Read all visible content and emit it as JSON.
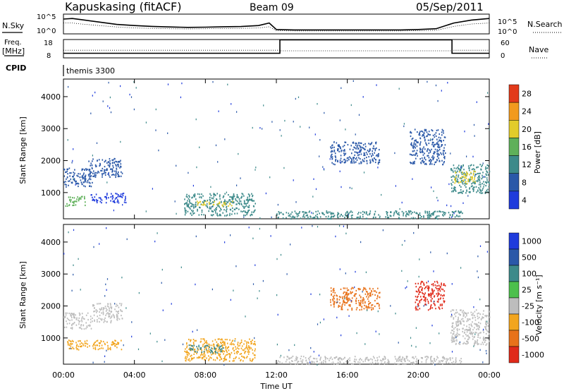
{
  "header": {
    "station": "Kapuskasing (fitACF)",
    "beam": "Beam 09",
    "date": "05/Sep/2011"
  },
  "strips": {
    "nsky_label": "N.Sky",
    "nsearch_label": "N.Search",
    "freq_label_1": "Freq.",
    "freq_label_2": "[MHz]",
    "nave_label": "Nave",
    "cpid_label": "CPID",
    "cpid_value": "themis 3300",
    "left_ticks_top": [
      "10^5",
      "10^0"
    ],
    "right_ticks_top": [
      "10^5",
      "10^0"
    ],
    "left_ticks_freq": [
      "18",
      "8"
    ],
    "right_ticks_nave": [
      "60",
      "0"
    ]
  },
  "axes": {
    "ylabel": "Slant Range [km]",
    "xlabel": "Time UT",
    "yticks": [
      "4000",
      "3000",
      "2000",
      "1000"
    ],
    "xticks": [
      "00:00",
      "04:00",
      "08:00",
      "12:00",
      "16:00",
      "20:00",
      "00:00"
    ]
  },
  "colorbars": {
    "power": {
      "label": "Power [dB]",
      "ticks": [
        "28",
        "24",
        "20",
        "16",
        "12",
        "8",
        "4"
      ]
    },
    "velocity": {
      "label": "Velocity [m s⁻¹]",
      "ticks": [
        "1000",
        "500",
        "100",
        "25",
        "-25",
        "-100",
        "-500",
        "-1000"
      ]
    }
  },
  "chart_data": [
    {
      "type": "heatmap",
      "title": "",
      "xlabel": "",
      "ylabel": "Slant Range [km]",
      "x_unit": "hours UT",
      "xlim": [
        0,
        24
      ],
      "ylim": [
        180,
        4550
      ],
      "legend": "Power [dB]",
      "color_levels": [
        4,
        8,
        12,
        16,
        20,
        24,
        28
      ],
      "colors": [
        "#1f3bdc",
        "#2a58a8",
        "#3d8a8a",
        "#5fb05a",
        "#e2cc2a",
        "#f29a1e",
        "#e23a1a"
      ],
      "regions": [
        {
          "t": [
            0.0,
            1.6
          ],
          "r": [
            1200,
            1800
          ],
          "level": 8
        },
        {
          "t": [
            0.1,
            1.2
          ],
          "r": [
            600,
            900
          ],
          "level": 16
        },
        {
          "t": [
            1.4,
            3.3
          ],
          "r": [
            1500,
            2100
          ],
          "level": 8
        },
        {
          "t": [
            1.5,
            3.5
          ],
          "r": [
            700,
            1000
          ],
          "level": 4
        },
        {
          "t": [
            6.8,
            10.8
          ],
          "r": [
            300,
            1000
          ],
          "level": 12
        },
        {
          "t": [
            7.5,
            9.5
          ],
          "r": [
            600,
            750
          ],
          "level": 20
        },
        {
          "t": [
            12.0,
            22.5
          ],
          "r": [
            200,
            450
          ],
          "level": 12
        },
        {
          "t": [
            15.0,
            17.8
          ],
          "r": [
            1900,
            2600
          ],
          "level": 8
        },
        {
          "t": [
            19.5,
            21.5
          ],
          "r": [
            1900,
            3000
          ],
          "level": 8
        },
        {
          "t": [
            21.8,
            24.0
          ],
          "r": [
            1000,
            1900
          ],
          "level": 12
        },
        {
          "t": [
            22.0,
            23.2
          ],
          "r": [
            1300,
            1700
          ],
          "level": 20
        }
      ]
    },
    {
      "type": "heatmap",
      "title": "",
      "xlabel": "Time UT",
      "ylabel": "Slant Range [km]",
      "x_unit": "hours UT",
      "xlim": [
        0,
        24
      ],
      "ylim": [
        180,
        4550
      ],
      "legend": "Velocity [m s⁻¹]",
      "color_levels": [
        1000,
        500,
        100,
        25,
        -25,
        -100,
        -500,
        -1000
      ],
      "colors": [
        "#1f3bdc",
        "#2a58a8",
        "#3d8a8a",
        "#4cc04c",
        "#bdbdbd",
        "#f2a51e",
        "#e8721a",
        "#e02a1a"
      ],
      "regions": [
        {
          "t": [
            0.0,
            1.6
          ],
          "r": [
            1300,
            1800
          ],
          "level": -25
        },
        {
          "t": [
            0.2,
            3.3
          ],
          "r": [
            650,
            950
          ],
          "level": -100
        },
        {
          "t": [
            1.6,
            3.3
          ],
          "r": [
            1500,
            2100
          ],
          "level": -25
        },
        {
          "t": [
            6.8,
            10.8
          ],
          "r": [
            300,
            1000
          ],
          "level": -100
        },
        {
          "t": [
            7.0,
            9.0
          ],
          "r": [
            550,
            800
          ],
          "level": 100
        },
        {
          "t": [
            12.0,
            22.5
          ],
          "r": [
            200,
            450
          ],
          "level": -25
        },
        {
          "t": [
            15.0,
            17.8
          ],
          "r": [
            1900,
            2600
          ],
          "level": -500
        },
        {
          "t": [
            19.8,
            21.5
          ],
          "r": [
            1900,
            2800
          ],
          "level": -1000
        },
        {
          "t": [
            21.8,
            24.0
          ],
          "r": [
            800,
            1900
          ],
          "level": -25
        }
      ]
    },
    {
      "type": "line",
      "title": "",
      "legend": "N.Sky / N.Search",
      "x": [
        0,
        0.5,
        1,
        2,
        3,
        4,
        5,
        6,
        7,
        8,
        9,
        10,
        11,
        11.6,
        12,
        13,
        14,
        15,
        16,
        17,
        18,
        19,
        20,
        21,
        22,
        23,
        24
      ],
      "series": [
        {
          "name": "N.Sky",
          "values": [
            0.75,
            0.78,
            0.72,
            0.6,
            0.48,
            0.42,
            0.38,
            0.35,
            0.33,
            0.34,
            0.36,
            0.37,
            0.42,
            0.55,
            0.22,
            0.2,
            0.2,
            0.2,
            0.2,
            0.2,
            0.2,
            0.2,
            0.22,
            0.26,
            0.55,
            0.7,
            0.78
          ]
        },
        {
          "name": "N.Search",
          "values": [
            0.55,
            0.55,
            0.5,
            0.42,
            0.35,
            0.3,
            0.28,
            0.26,
            0.25,
            0.26,
            0.27,
            0.28,
            0.3,
            0.36,
            0.16,
            0.15,
            0.15,
            0.15,
            0.15,
            0.15,
            0.15,
            0.15,
            0.16,
            0.18,
            0.38,
            0.5,
            0.55
          ]
        }
      ]
    },
    {
      "type": "line",
      "title": "",
      "x": [
        0,
        12.2,
        12.2,
        21.9,
        21.9,
        24
      ],
      "series": [
        {
          "name": "Freq. [MHz]",
          "values": [
            10.5,
            10.5,
            17.8,
            17.8,
            10.5,
            10.5
          ]
        },
        {
          "name": "Nave",
          "values": [
            25,
            25,
            23,
            23,
            25,
            25
          ]
        }
      ]
    }
  ]
}
